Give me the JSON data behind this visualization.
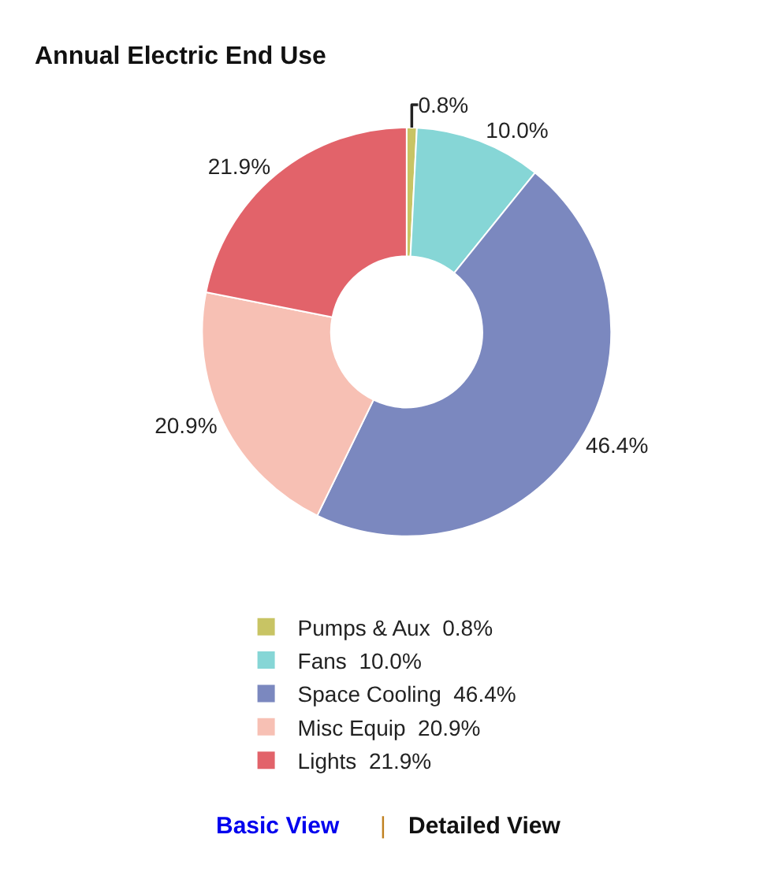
{
  "chart_data": {
    "type": "donut",
    "title": "Annual Electric End Use",
    "categories": [
      "Pumps & Aux",
      "Fans",
      "Space Cooling",
      "Misc Equip",
      "Lights"
    ],
    "values": [
      0.8,
      10.0,
      46.4,
      20.9,
      21.9
    ],
    "colors": [
      "#c8c464",
      "#86d6d6",
      "#7b88bf",
      "#f7c0b4",
      "#e2636a"
    ],
    "value_labels": [
      "0.8%",
      "10.0%",
      "46.4%",
      "20.9%",
      "21.9%"
    ],
    "legend": "bottom",
    "annotations": [
      "Basic View",
      "|",
      "Detailed View"
    ]
  }
}
